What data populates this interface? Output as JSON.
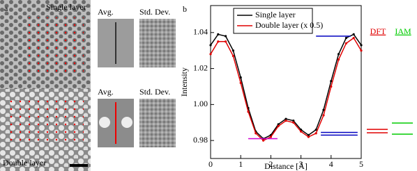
{
  "panel_a": {
    "label": "a",
    "top_label": "Single layer",
    "bottom_label": "Double layer",
    "insets": [
      {
        "avg": "Avg.",
        "std": "Std. Dev."
      },
      {
        "avg": "Avg.",
        "std": "Std. Dev."
      }
    ]
  },
  "chart_data": {
    "type": "line",
    "panel_label": "b",
    "x_label": "Distance  [Å]",
    "y_label": "Intensity",
    "x": [
      0,
      0.25,
      0.5,
      0.75,
      1,
      1.25,
      1.5,
      1.75,
      2,
      2.25,
      2.5,
      2.75,
      3,
      3.25,
      3.5,
      3.75,
      4,
      4.25,
      4.5,
      4.75,
      5
    ],
    "series": [
      {
        "name": "Single layer",
        "color": "#000000",
        "values": [
          1.033,
          1.039,
          1.038,
          1.03,
          1.015,
          0.998,
          0.985,
          0.981,
          0.983,
          0.989,
          0.992,
          0.991,
          0.986,
          0.983,
          0.986,
          0.997,
          1.013,
          1.028,
          1.037,
          1.039,
          1.033
        ]
      },
      {
        "name": "Double layer (x 0.5)",
        "color": "#e00000",
        "values": [
          1.028,
          1.035,
          1.035,
          1.027,
          1.012,
          0.996,
          0.984,
          0.98,
          0.982,
          0.988,
          0.991,
          0.99,
          0.985,
          0.982,
          0.984,
          0.994,
          1.01,
          1.025,
          1.034,
          1.037,
          1.03
        ]
      }
    ],
    "segments": [
      {
        "color": "#d000d0",
        "y": 0.981,
        "x": [
          1.25,
          2.22
        ]
      },
      {
        "color": "#0000c0",
        "y": 1.038,
        "x": [
          3.5,
          4.65
        ]
      },
      {
        "color": "#0000c0",
        "y": 0.9845,
        "x": [
          3.66,
          4.88
        ]
      },
      {
        "color": "#0000c0",
        "y": 0.983,
        "x": [
          3.66,
          4.88
        ]
      }
    ],
    "side_markers": [
      {
        "label": "DFT",
        "color": "#e00000",
        "values": [
          0.9862,
          0.9843
        ]
      },
      {
        "label": "IAM",
        "color": "#00cc00",
        "values": [
          0.9897,
          0.9835
        ]
      }
    ],
    "xlim": [
      0,
      5
    ],
    "xticks": [
      0,
      1,
      2,
      3,
      4,
      5
    ],
    "ylim": [
      0.97,
      1.055
    ],
    "yticks": [
      0.98,
      {
        "value": 1,
        "label": "1.00"
      },
      1.02,
      1.04
    ]
  }
}
